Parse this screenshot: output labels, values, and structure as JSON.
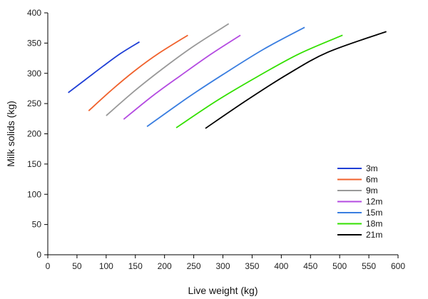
{
  "chart_data": {
    "type": "line",
    "title": "",
    "xlabel": "Live weight (kg)",
    "ylabel": "Milk solids (kg)",
    "xlim": [
      0,
      600
    ],
    "ylim": [
      0,
      400
    ],
    "xticks": [
      0,
      50,
      100,
      150,
      200,
      250,
      300,
      350,
      400,
      450,
      500,
      550,
      600
    ],
    "yticks": [
      0,
      50,
      100,
      150,
      200,
      250,
      300,
      350,
      400
    ],
    "grid": false,
    "legend_position": "bottom-right",
    "series": [
      {
        "name": "3m",
        "color": "#1f3fd6",
        "x": [
          35,
          65,
          95,
          125,
          157
        ],
        "y": [
          268,
          290,
          312,
          333,
          352
        ]
      },
      {
        "name": "6m",
        "color": "#f0622d",
        "x": [
          70,
          110,
          150,
          190,
          240
        ],
        "y": [
          238,
          273,
          305,
          333,
          363
        ]
      },
      {
        "name": "9m",
        "color": "#999999",
        "x": [
          100,
          150,
          200,
          250,
          310
        ],
        "y": [
          230,
          272,
          310,
          345,
          382
        ]
      },
      {
        "name": "12m",
        "color": "#b44be1",
        "x": [
          130,
          180,
          230,
          280,
          330
        ],
        "y": [
          224,
          263,
          298,
          332,
          363
        ]
      },
      {
        "name": "15m",
        "color": "#3a7ee0",
        "x": [
          170,
          240,
          300,
          370,
          440
        ],
        "y": [
          212,
          260,
          298,
          340,
          376
        ]
      },
      {
        "name": "18m",
        "color": "#33e000",
        "x": [
          220,
          290,
          360,
          430,
          505
        ],
        "y": [
          210,
          255,
          295,
          332,
          363
        ]
      },
      {
        "name": "21m",
        "color": "#000000",
        "x": [
          270,
          340,
          410,
          480,
          580
        ],
        "y": [
          209,
          255,
          298,
          335,
          369
        ]
      }
    ]
  }
}
